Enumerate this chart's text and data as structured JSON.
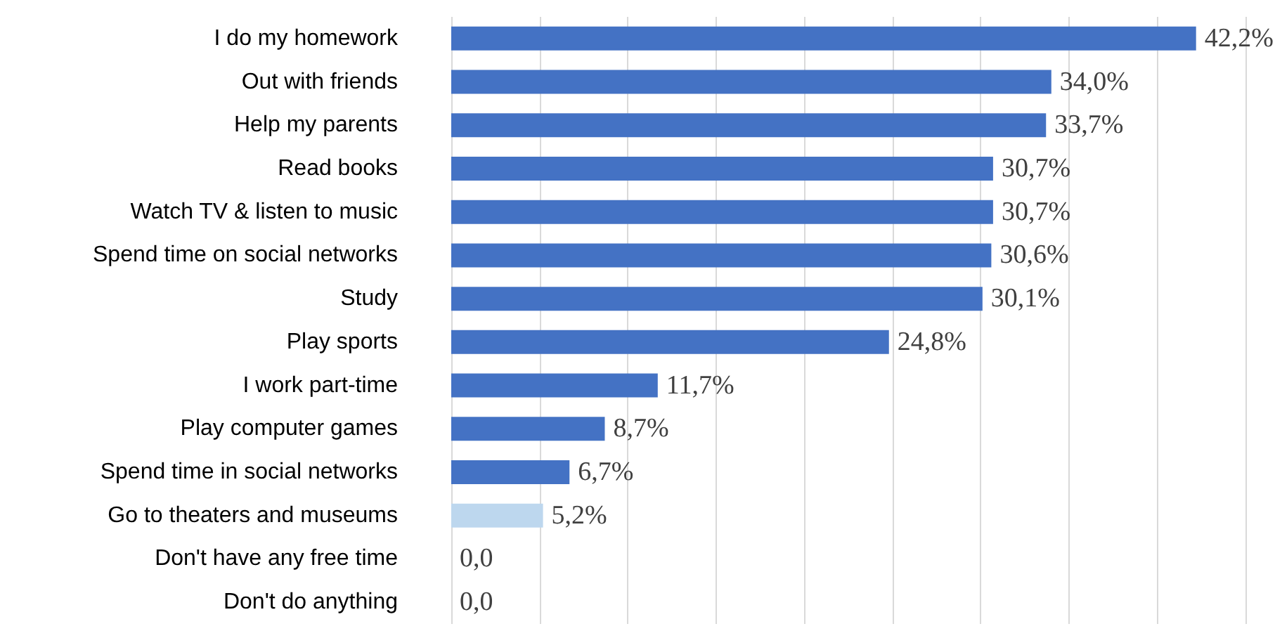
{
  "chart_data": {
    "type": "bar",
    "orientation": "horizontal",
    "categories": [
      "I do my homework",
      "Out with friends",
      "Help my parents",
      "Read books",
      "Watch TV & listen to music",
      "Spend time on social networks",
      "Study",
      "Play sports",
      "I work part-time",
      "Play computer games",
      "Spend time in social networks",
      "Go to theaters and museums",
      "Don't have any free time",
      "Don't do anything"
    ],
    "values": [
      42.2,
      34.0,
      33.7,
      30.7,
      30.7,
      30.6,
      30.1,
      24.8,
      11.7,
      8.7,
      6.7,
      5.2,
      0,
      0
    ],
    "colors": [
      "#4472c4",
      "#4472c4",
      "#4472c4",
      "#4472c4",
      "#4472c4",
      "#4472c4",
      "#4472c4",
      "#4472c4",
      "#4472c4",
      "#4472c4",
      "#4472c4",
      "#bdd7ee",
      "#4472c4",
      "#4472c4"
    ],
    "value_labels": [
      "42,2%",
      "34,0%",
      "33,7%",
      "30,7%",
      "30,7%",
      "30,6%",
      "30,1%",
      "24,8%",
      "11,7%",
      "8,7%",
      "6,7%",
      "5,2%",
      "0,0",
      "0,0"
    ],
    "xlim": [
      0,
      45
    ],
    "xticks": [
      {
        "value": 0,
        "label": null
      },
      {
        "value": 5,
        "label": null
      },
      {
        "value": 10,
        "label": null
      },
      {
        "value": 15,
        "label": null
      },
      {
        "value": 20,
        "label": null
      },
      {
        "value": 25,
        "label": null
      },
      {
        "value": 30,
        "label": null
      },
      {
        "value": 35,
        "label": null
      },
      {
        "value": 40,
        "label": null
      },
      {
        "value": 45,
        "label": null
      }
    ],
    "grid": "x",
    "tick_labels": "y"
  }
}
